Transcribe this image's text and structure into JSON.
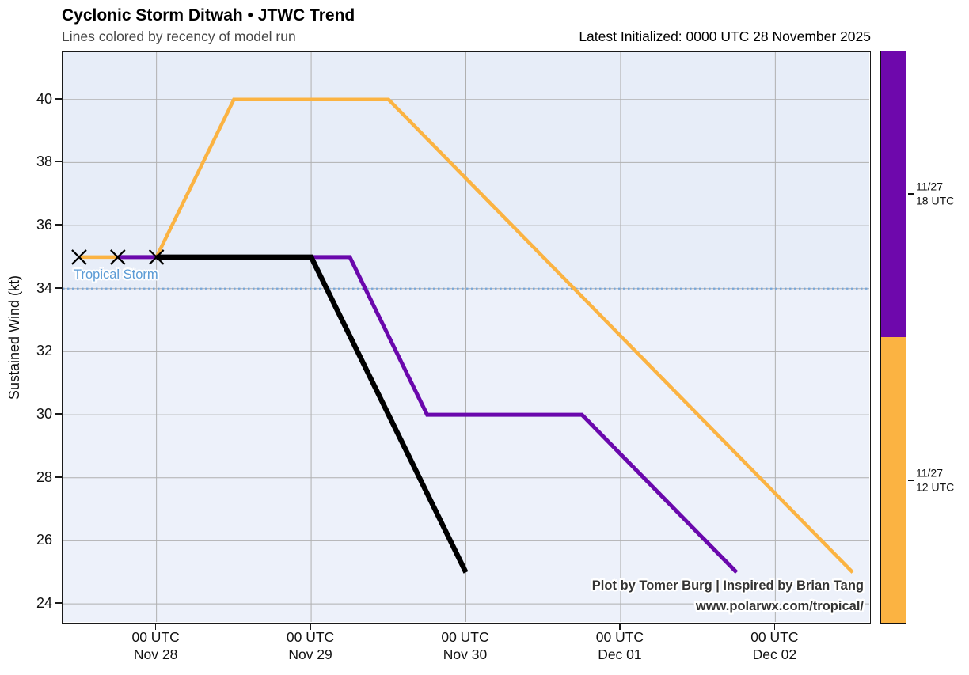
{
  "header": {
    "title": "Cyclonic Storm Ditwah • JTWC Trend",
    "subtitle": "Lines colored by recency of model run",
    "latest_initialized": "Latest Initialized: 0000 UTC 28 November 2025"
  },
  "attribution": {
    "line1": "Plot by Tomer Burg | Inspired by Brian Tang",
    "line2": "www.polarwx.com/tropical/"
  },
  "chart_data": {
    "type": "line",
    "title": "Cyclonic Storm Ditwah • JTWC Trend",
    "ylabel": "Sustained Wind (kt)",
    "ylim": [
      23.425,
      41.5
    ],
    "yticks": [
      40,
      38,
      36,
      34,
      32,
      30,
      28,
      26,
      24
    ],
    "xlim_hours_from_nov28_00utc": [
      -14.57,
      110.57
    ],
    "xticks": [
      {
        "t": 0,
        "line1": "00 UTC",
        "line2": "Nov 28"
      },
      {
        "t": 24,
        "line1": "00 UTC",
        "line2": "Nov 29"
      },
      {
        "t": 48,
        "line1": "00 UTC",
        "line2": "Nov 30"
      },
      {
        "t": 72,
        "line1": "00 UTC",
        "line2": "Dec 01"
      },
      {
        "t": 96,
        "line1": "00 UTC",
        "line2": "Dec 02"
      }
    ],
    "grid": true,
    "grid_color": "#b0b0b0",
    "band_above_34_color": "#e7edf8",
    "band_below_34_color": "#edf1fa",
    "threshold": {
      "value": 34,
      "label": "Tropical Storm",
      "label_color": "#5b9bd5",
      "line_color": "#78a6d8"
    },
    "marker": {
      "shape": "x",
      "color": "#000000",
      "half_size": 9,
      "stroke_width": 2.2
    },
    "series": [
      {
        "name": "JTWC run 11/27 12 UTC",
        "color": "#fbb342",
        "stroke_width": 4.5,
        "points_t_kt": [
          [
            -12,
            35
          ],
          [
            0,
            35
          ],
          [
            12,
            40
          ],
          [
            24,
            40
          ],
          [
            36,
            40
          ],
          [
            60,
            35
          ],
          [
            84,
            30
          ],
          [
            108,
            25
          ]
        ]
      },
      {
        "name": "JTWC run 11/27 18 UTC",
        "color": "#6a08ac",
        "stroke_width": 5,
        "points_t_kt": [
          [
            -6,
            35
          ],
          [
            30,
            35
          ],
          [
            42,
            30
          ],
          [
            66,
            30
          ],
          [
            90,
            25
          ]
        ]
      },
      {
        "name": "JTWC run 11/28 00 UTC (latest)",
        "color": "#000000",
        "stroke_width": 6.5,
        "points_t_kt": [
          [
            0,
            35
          ],
          [
            24,
            35
          ],
          [
            48,
            25
          ]
        ]
      }
    ],
    "legend_position": "right-colorbar"
  },
  "colorbar": {
    "segments": [
      {
        "color": "#6e08ac",
        "label_line1": "11/27",
        "label_line2": "18 UTC"
      },
      {
        "color": "#fbb342",
        "label_line1": "11/27",
        "label_line2": "12 UTC"
      }
    ]
  }
}
